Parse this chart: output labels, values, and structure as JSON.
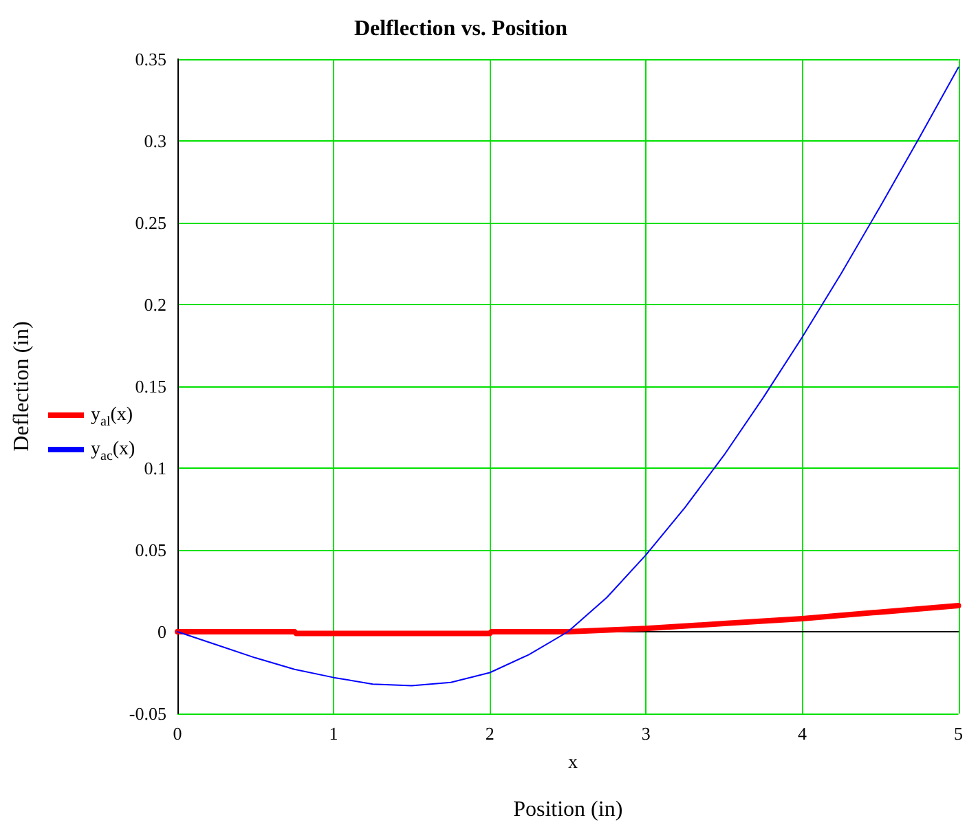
{
  "chart_data": {
    "type": "line",
    "title": "Delflection vs. Position",
    "xlabel": "Position (in)",
    "ylabel": "Deflection (in)",
    "annotations": [
      "x"
    ],
    "xlim": [
      0,
      5
    ],
    "xticks": [
      0,
      1,
      2,
      3,
      4,
      5
    ],
    "ylim": [
      -0.05,
      0.35
    ],
    "yticks": [
      -0.05,
      0,
      0.05,
      0.1,
      0.15,
      0.2,
      0.25,
      0.3,
      0.35
    ],
    "grid": true,
    "legend": "left",
    "marker": "none",
    "line_style": "solid",
    "series": [
      {
        "name": "y$_{al}$(x)",
        "color": "#ff0000",
        "x": [
          0,
          0.75,
          0.76,
          2,
          2.01,
          2.5,
          3,
          3.5,
          4,
          4.5,
          5
        ],
        "values": [
          0,
          0,
          -0.001,
          -0.001,
          0,
          0,
          0.002,
          0.005,
          0.008,
          0.012,
          0.016
        ]
      },
      {
        "name": "y$_{ac}$(x)",
        "color": "#0000ff",
        "x": [
          0,
          0.25,
          0.5,
          0.75,
          1,
          1.25,
          1.5,
          1.75,
          2,
          2.25,
          2.5,
          2.75,
          3,
          3.25,
          3.5,
          3.75,
          4,
          4.25,
          4.5,
          4.75,
          5
        ],
        "values": [
          0,
          -0.008,
          -0.016,
          -0.023,
          -0.028,
          -0.032,
          -0.033,
          -0.031,
          -0.025,
          -0.014,
          0,
          0.021,
          0.047,
          0.076,
          0.108,
          0.143,
          0.18,
          0.219,
          0.26,
          0.302,
          0.345
        ]
      }
    ]
  }
}
